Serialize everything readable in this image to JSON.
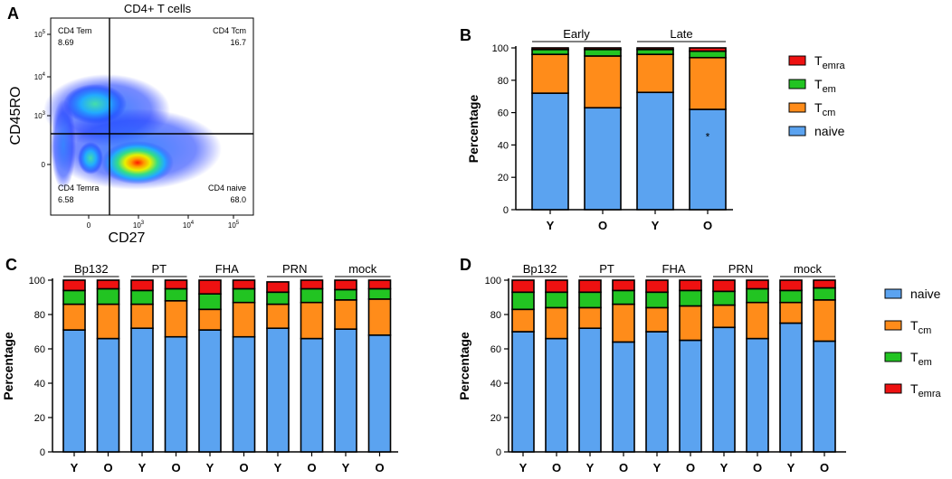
{
  "panel_labels": {
    "A": "A",
    "B": "B",
    "C": "C",
    "D": "D"
  },
  "colors": {
    "naive": "#5ba3f0",
    "tcm": "#ff8c1a",
    "tem": "#22c422",
    "temra": "#ee1111"
  },
  "chart_data": [
    {
      "panel": "A",
      "type": "scatter",
      "title": "CD4+ T cells",
      "xlabel": "CD27",
      "ylabel": "CD45RO",
      "x_ticks": [
        "0",
        "10^3",
        "10^4",
        "10^5"
      ],
      "y_ticks": [
        "0",
        "10^3",
        "10^4",
        "10^5"
      ],
      "quadrants": [
        {
          "label": "CD4 Tem",
          "value": "8.69"
        },
        {
          "label": "CD4 Tcm",
          "value": "16.7"
        },
        {
          "label": "CD4 Temra",
          "value": "6.58"
        },
        {
          "label": "CD4 naive",
          "value": "68.0"
        }
      ]
    },
    {
      "panel": "B",
      "type": "bar",
      "stacked": true,
      "ylabel": "Percentage",
      "ylim": [
        0,
        100
      ],
      "yticks": [
        "0",
        "20",
        "40",
        "60",
        "80",
        "100"
      ],
      "categories": [
        "Y",
        "O",
        "Y",
        "O"
      ],
      "groups": [
        "Early",
        "Late"
      ],
      "annotation": "*",
      "series": [
        {
          "name": "naive",
          "values": [
            72,
            63,
            72.5,
            62
          ]
        },
        {
          "name": "Tcm",
          "values": [
            24,
            32,
            23.5,
            32
          ]
        },
        {
          "name": "Tem",
          "values": [
            3,
            4,
            3,
            4
          ]
        },
        {
          "name": "Temra",
          "values": [
            1,
            1,
            1,
            2
          ]
        }
      ],
      "legend": [
        {
          "key": "temra",
          "base": "T",
          "sub": "emra"
        },
        {
          "key": "tem",
          "base": "T",
          "sub": "em"
        },
        {
          "key": "tcm",
          "base": "T",
          "sub": "cm"
        },
        {
          "key": "naive",
          "base": "naive",
          "sub": ""
        }
      ]
    },
    {
      "panel": "C",
      "type": "bar",
      "stacked": true,
      "ylabel": "Percentage",
      "ylim": [
        0,
        100
      ],
      "yticks": [
        "0",
        "20",
        "40",
        "60",
        "80",
        "100"
      ],
      "categories": [
        "Y",
        "O",
        "Y",
        "O",
        "Y",
        "O",
        "Y",
        "O",
        "Y",
        "O"
      ],
      "groups": [
        "Bp132",
        "PT",
        "FHA",
        "PRN",
        "mock"
      ],
      "series": [
        {
          "name": "naive",
          "values": [
            71,
            66,
            72,
            67,
            71,
            67,
            72,
            66,
            71.5,
            68
          ]
        },
        {
          "name": "Tcm",
          "values": [
            15,
            20,
            14,
            21,
            12,
            20,
            14,
            21,
            17,
            21
          ]
        },
        {
          "name": "Tem",
          "values": [
            8,
            9,
            8,
            7,
            9,
            8,
            7,
            8,
            6,
            6
          ]
        },
        {
          "name": "Temra",
          "values": [
            6,
            5,
            6,
            5,
            8,
            5,
            6,
            5,
            5.5,
            5
          ]
        }
      ]
    },
    {
      "panel": "D",
      "type": "bar",
      "stacked": true,
      "ylabel": "Percentage",
      "ylim": [
        0,
        100
      ],
      "yticks": [
        "0",
        "20",
        "40",
        "60",
        "80",
        "100"
      ],
      "categories": [
        "Y",
        "O",
        "Y",
        "O",
        "Y",
        "O",
        "Y",
        "O",
        "Y",
        "O"
      ],
      "groups": [
        "Bp132",
        "PT",
        "FHA",
        "PRN",
        "mock"
      ],
      "series": [
        {
          "name": "naive",
          "values": [
            70,
            66,
            72,
            64,
            70,
            65,
            72.5,
            66,
            75,
            64.5
          ]
        },
        {
          "name": "Tcm",
          "values": [
            13,
            18,
            12,
            22,
            14,
            20,
            13,
            21,
            12,
            24
          ]
        },
        {
          "name": "Tem",
          "values": [
            10,
            9,
            9,
            8,
            9,
            9,
            8,
            8,
            7,
            7
          ]
        },
        {
          "name": "Temra",
          "values": [
            7,
            7,
            7,
            6,
            7,
            6,
            6.5,
            5,
            6,
            4.5
          ]
        }
      ],
      "legend": [
        {
          "key": "naive",
          "base": "naive",
          "sub": ""
        },
        {
          "key": "tcm",
          "base": "T",
          "sub": "cm"
        },
        {
          "key": "tem",
          "base": "T",
          "sub": "em"
        },
        {
          "key": "temra",
          "base": "T",
          "sub": "emra"
        }
      ]
    }
  ]
}
